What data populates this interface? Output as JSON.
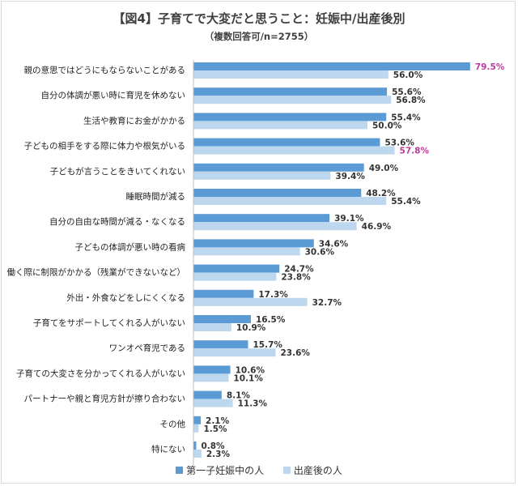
{
  "chart_data": {
    "type": "bar",
    "orientation": "horizontal",
    "title": "【図4】子育てで大変だと思うこと：妊娠中/出産後別",
    "subtitle": "（複数回答可/n=2755）",
    "categories": [
      "親の意思ではどうにもならないことがある",
      "自分の体調が悪い時に育児を休めない",
      "生活や教育にお金がかかる",
      "子どもの相手をする際に体力や根気がいる",
      "子どもが言うことをきいてくれない",
      "睡眠時間が減る",
      "自分の自由な時間が減る・なくなる",
      "子どもの体調が悪い時の看病",
      "働く際に制限がかかる（残業ができないなど）",
      "外出・外食などをしにくくなる",
      "子育てをサポートしてくれる人がいない",
      "ワンオペ育児である",
      "子育ての大変さを分かってくれる人がいない",
      "パートナーや親と育児方針が擦り合わない",
      "その他",
      "特にない"
    ],
    "series": [
      {
        "name": "第一子妊娠中の人",
        "color": "#5b9bd5",
        "values": [
          79.5,
          55.6,
          55.4,
          53.6,
          49.0,
          48.2,
          39.1,
          34.6,
          24.7,
          17.3,
          16.5,
          15.7,
          10.6,
          8.1,
          2.1,
          0.8
        ],
        "labels": [
          "79.5%",
          "55.6%",
          "55.4%",
          "53.6%",
          "49.0%",
          "48.2%",
          "39.1%",
          "34.6%",
          "24.7%",
          "17.3%",
          "16.5%",
          "15.7%",
          "10.6%",
          "8.1%",
          "2.1%",
          "0.8%"
        ],
        "highlight_index": 0,
        "highlight_color": "#c0399e"
      },
      {
        "name": "出産後の人",
        "color": "#bdd7ee",
        "values": [
          56.0,
          56.8,
          50.0,
          57.8,
          39.4,
          55.4,
          46.9,
          30.6,
          23.8,
          32.7,
          10.9,
          23.6,
          10.1,
          11.3,
          1.5,
          2.3
        ],
        "labels": [
          "56.0%",
          "56.8%",
          "50.0%",
          "57.8%",
          "39.4%",
          "55.4%",
          "46.9%",
          "30.6%",
          "23.8%",
          "32.7%",
          "10.9%",
          "23.6%",
          "10.1%",
          "11.3%",
          "1.5%",
          "2.3%"
        ],
        "highlight_index": 3,
        "highlight_color": "#c0399e"
      }
    ],
    "xlim": [
      0,
      80
    ],
    "grid": false,
    "legend_position": "bottom"
  }
}
